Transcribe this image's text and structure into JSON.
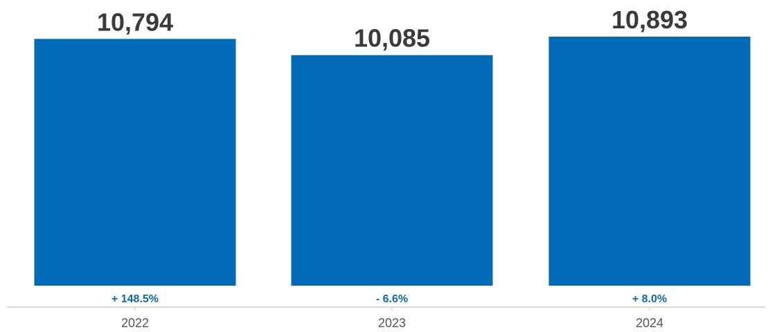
{
  "colors": {
    "bar": "#006bb8",
    "change_text": "#0b6aa8",
    "value_text": "#3a3a3a",
    "axis_line": "#c8c8c8",
    "tick_text": "#555555"
  },
  "chart_data": {
    "type": "bar",
    "title": "",
    "xlabel": "",
    "ylabel": "",
    "categories": [
      "2022",
      "2023",
      "2024"
    ],
    "values": [
      10794,
      10085,
      10893
    ],
    "value_labels": [
      "10,794",
      "10,085",
      "10,893"
    ],
    "change_labels": [
      "+ 148.5%",
      "- 6.6%",
      "+ 8.0%"
    ],
    "ylim": [
      0,
      10893
    ],
    "grid": false,
    "legend": "none"
  }
}
